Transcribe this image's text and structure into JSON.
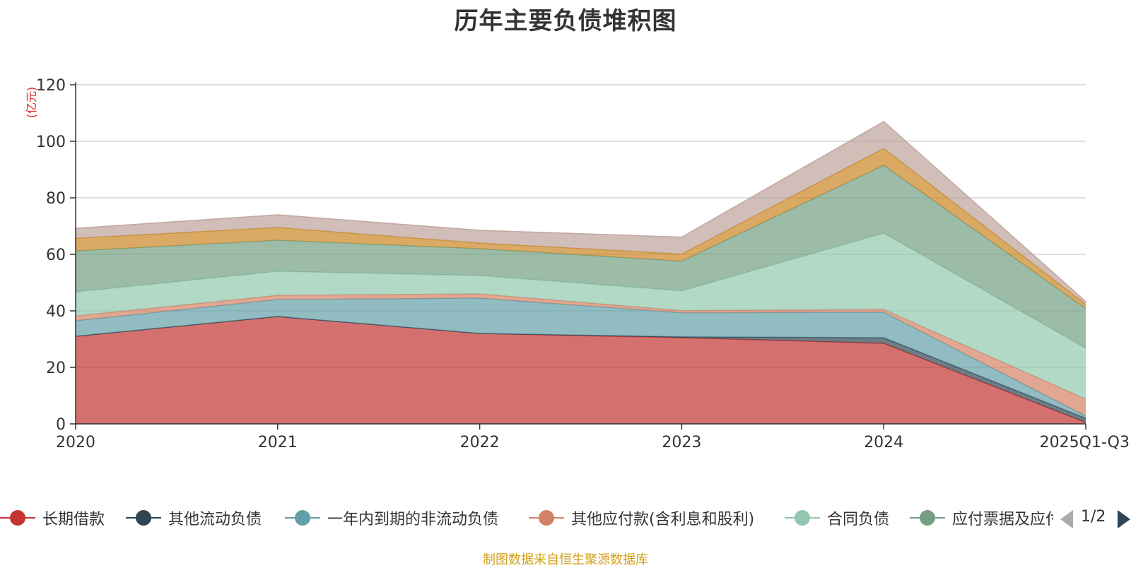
{
  "chart_data": {
    "type": "area",
    "stacked": true,
    "title": "历年主要负债堆积图",
    "unit": "(亿元)",
    "categories": [
      "2020",
      "2021",
      "2022",
      "2023",
      "2024",
      "2025Q1-Q3"
    ],
    "ylim": [
      0,
      120
    ],
    "yticks": [
      0,
      20,
      40,
      60,
      80,
      100,
      120
    ],
    "grid": true,
    "series": [
      {
        "name": "长期借款",
        "color": "#c23531",
        "values": [
          31,
          38,
          32,
          30.5,
          28.5,
          0.5
        ]
      },
      {
        "name": "其他流动负债",
        "color": "#2f4554",
        "values": [
          0,
          0,
          0,
          0.3,
          2,
          1.5
        ]
      },
      {
        "name": "一年内到期的非流动负债",
        "color": "#61a0a8",
        "values": [
          5.5,
          6,
          12.5,
          8.5,
          9,
          0.8
        ]
      },
      {
        "name": "其他应付款(含利息和股利)",
        "color": "#d48265",
        "values": [
          1.7,
          1.5,
          1.5,
          0.8,
          1,
          6
        ]
      },
      {
        "name": "合同负债",
        "color": "#91c7ae",
        "values": [
          8.5,
          8.5,
          6.5,
          7,
          27,
          18
        ]
      },
      {
        "name": "应付票据及应付账款",
        "color": "#749f83",
        "values": [
          14.5,
          11,
          9.5,
          10.5,
          24,
          14
        ]
      },
      {
        "name": "",
        "color": "#ca8622",
        "values": [
          4.5,
          4.5,
          2,
          2.5,
          6,
          1.5
        ]
      },
      {
        "name": "",
        "color": "#bda29a",
        "values": [
          3.5,
          4.5,
          4.5,
          6,
          9.5,
          1
        ]
      }
    ]
  },
  "legend": {
    "page_indicator": "1/2"
  },
  "source": "制图数据来自恒生聚源数据库"
}
